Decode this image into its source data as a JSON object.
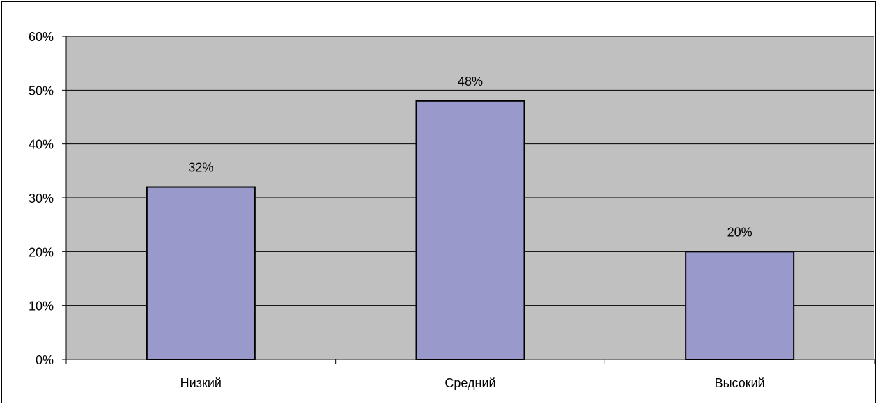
{
  "chart_data": {
    "type": "bar",
    "categories": [
      "Низкий",
      "Средний",
      "Высокий"
    ],
    "values": [
      32,
      48,
      20
    ],
    "data_labels": [
      "32%",
      "48%",
      "20%"
    ],
    "title": "",
    "xlabel": "",
    "ylabel": "",
    "ylim": [
      0,
      60
    ],
    "y_ticks": [
      0,
      10,
      20,
      30,
      40,
      50,
      60
    ],
    "y_tick_labels": [
      "0%",
      "10%",
      "20%",
      "30%",
      "40%",
      "50%",
      "60%"
    ],
    "grid": true,
    "legend": "none",
    "colors": {
      "plot_background": "#c0c0c0",
      "bar_fill": "#9999cc",
      "bar_stroke": "#000000",
      "gridline": "#000000",
      "axis": "#000000"
    }
  }
}
